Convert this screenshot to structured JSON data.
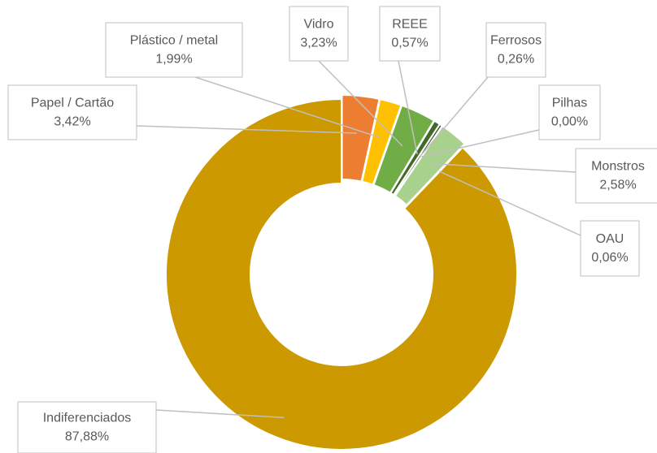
{
  "chart_data": {
    "type": "donut",
    "categories": [
      "Papel / Cartão",
      "Plástico / metal",
      "Vidro",
      "REEE",
      "Ferrosos",
      "Pilhas",
      "Monstros",
      "OAU",
      "Indiferenciados"
    ],
    "values": [
      3.42,
      1.99,
      3.23,
      0.57,
      0.26,
      0.0,
      2.58,
      0.06,
      87.88
    ],
    "value_labels": [
      "3,42%",
      "1,99%",
      "3,23%",
      "0,57%",
      "0,26%",
      "0,00%",
      "2,58%",
      "0,06%",
      "87,88%"
    ],
    "colors": [
      "#ED7D31",
      "#FFC000",
      "#70AD47",
      "#43682B",
      "#375623",
      "#548235",
      "#A9D18E",
      "#C5E0B4",
      "#CC9900"
    ]
  }
}
